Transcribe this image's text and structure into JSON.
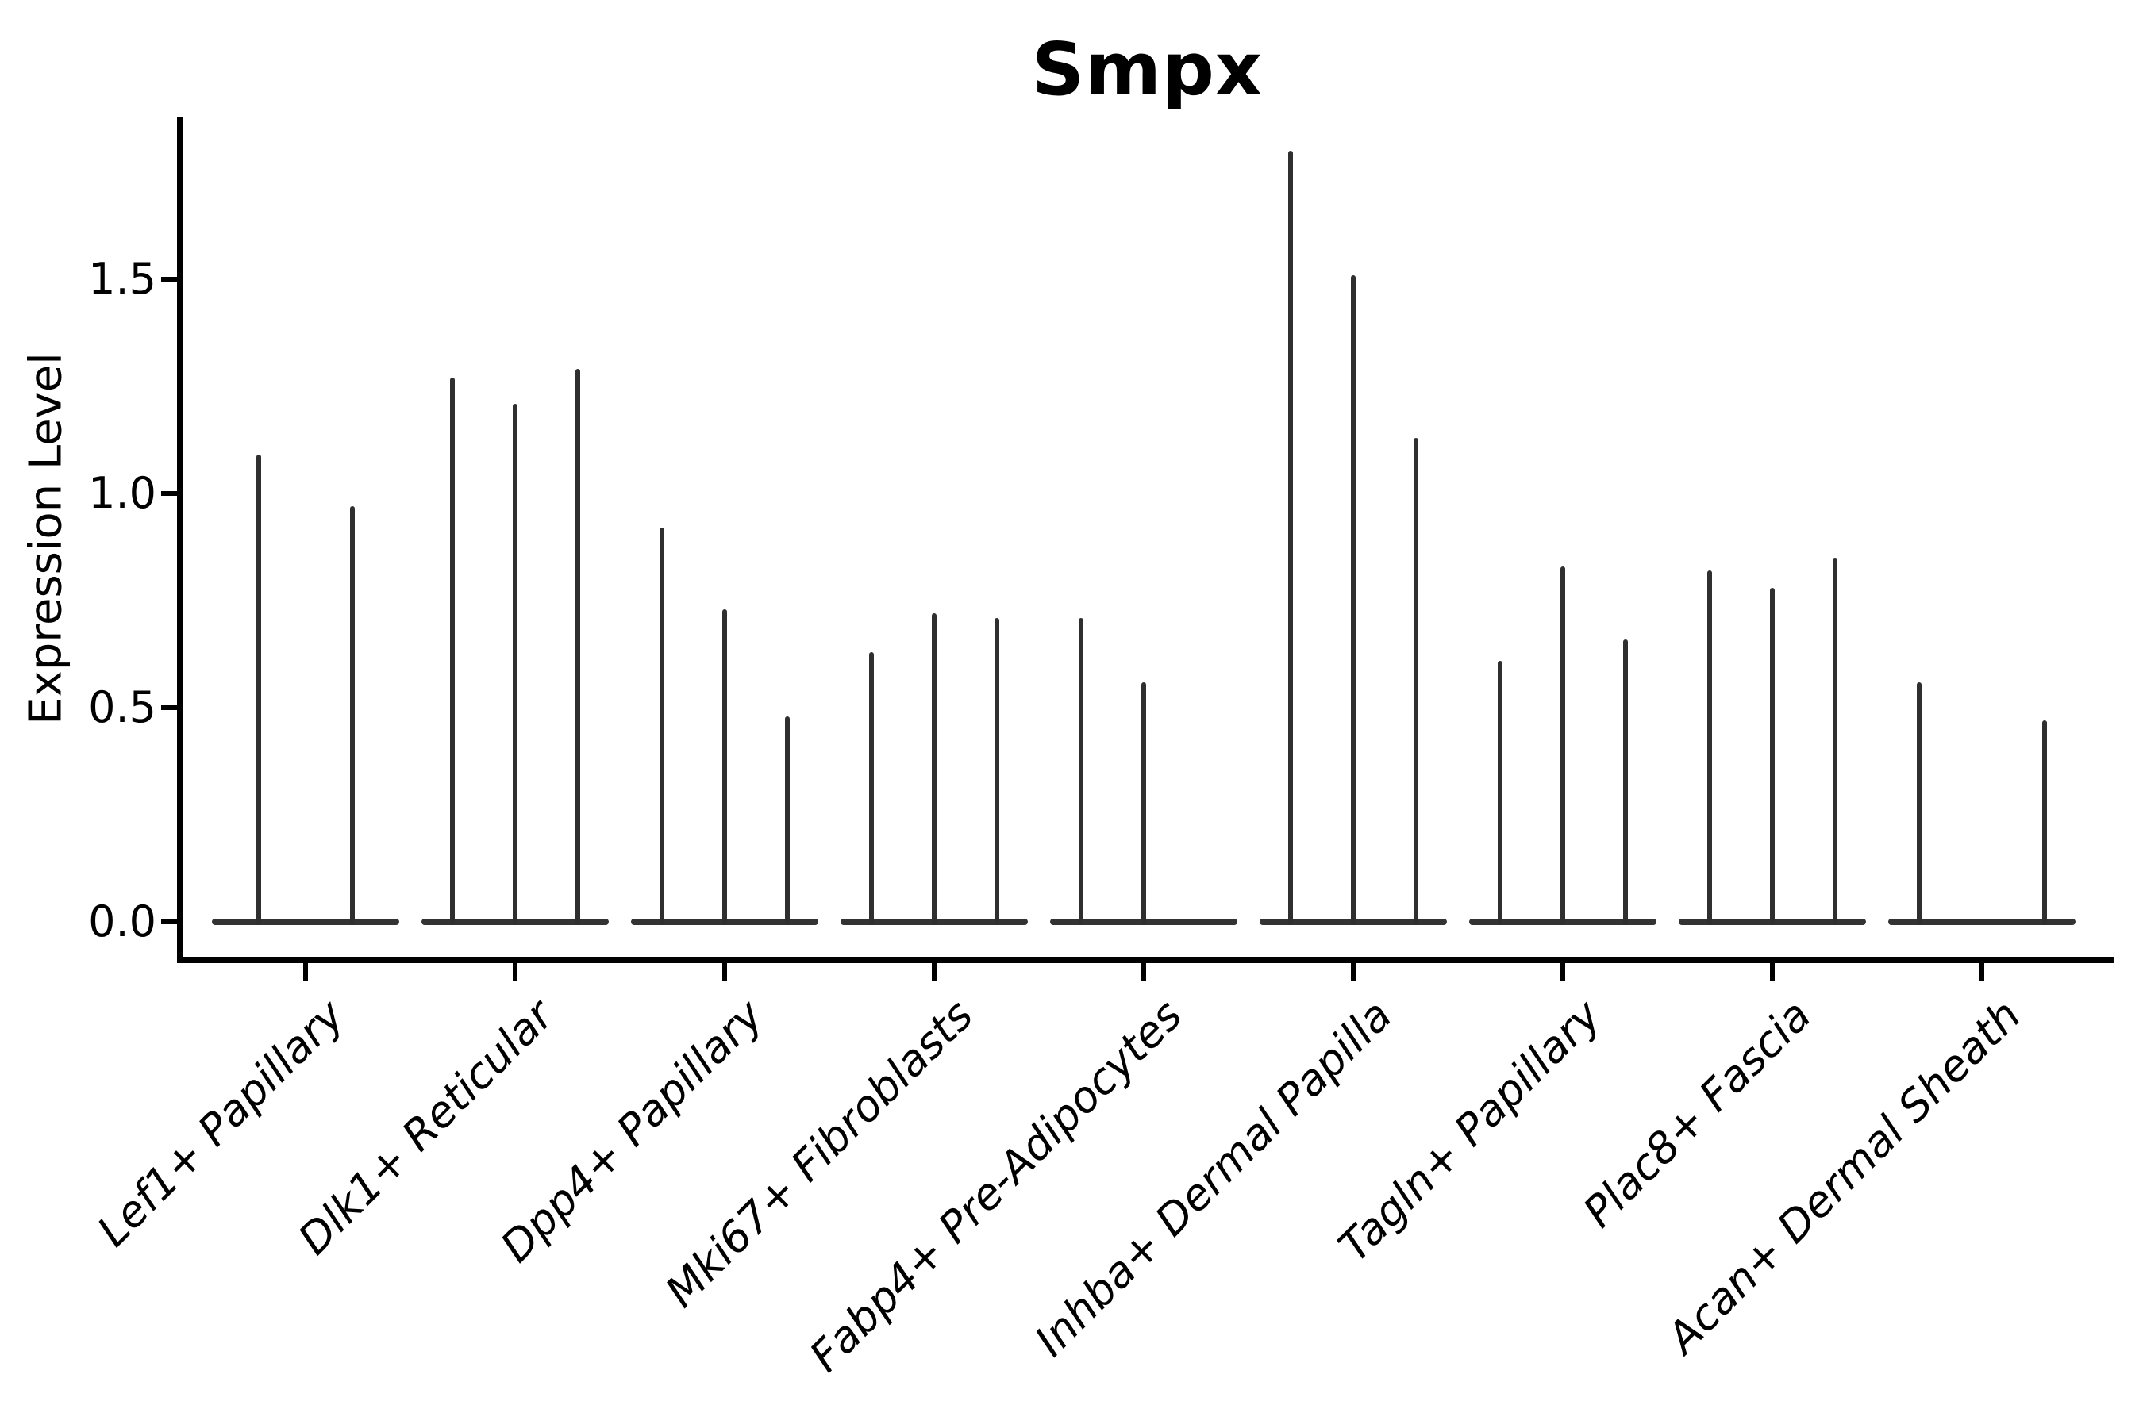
{
  "title": "Smpx",
  "ylabel": "Expression Level",
  "colors": {
    "background": "#ffffff",
    "axis": "#000000",
    "violin": "#2f2f2f",
    "text": "#000000"
  },
  "chart_data": {
    "type": "violin",
    "title": "Smpx",
    "xlabel": "",
    "ylabel": "Expression Level",
    "ylim": [
      -0.09,
      1.88
    ],
    "grid": false,
    "legend": "none",
    "x_label_rotation_deg": 45,
    "x_label_style": "italic",
    "yticks": [
      {
        "value": 0.0,
        "label": "0.0"
      },
      {
        "value": 0.5,
        "label": "0.5"
      },
      {
        "value": 1.0,
        "label": "1.0"
      },
      {
        "value": 1.5,
        "label": "1.5"
      }
    ],
    "categories": [
      "Lef1+ Papillary",
      "Dlk1+ Reticular",
      "Dpp4+ Papillary",
      "Mki67+ Fibroblasts",
      "Fabp4+ Pre-Adipocytes",
      "Inhba+ Dermal Papilla",
      "Tagln+ Papillary",
      "Plac8+ Fascia",
      "Acan+ Dermal Sheath"
    ],
    "groups": [
      {
        "label": "Lef1+ Papillary",
        "n_slots": 2,
        "violins": [
          {
            "slot": 0,
            "max": 1.09
          },
          {
            "slot": 1,
            "max": 0.97
          }
        ]
      },
      {
        "label": "Dlk1+ Reticular",
        "n_slots": 3,
        "violins": [
          {
            "slot": 0,
            "max": 1.27
          },
          {
            "slot": 1,
            "max": 1.21
          },
          {
            "slot": 2,
            "max": 1.29
          }
        ]
      },
      {
        "label": "Dpp4+ Papillary",
        "n_slots": 3,
        "violins": [
          {
            "slot": 0,
            "max": 0.92
          },
          {
            "slot": 1,
            "max": 0.73
          },
          {
            "slot": 2,
            "max": 0.48
          }
        ]
      },
      {
        "label": "Mki67+ Fibroblasts",
        "n_slots": 3,
        "violins": [
          {
            "slot": 0,
            "max": 0.63
          },
          {
            "slot": 1,
            "max": 0.72
          },
          {
            "slot": 2,
            "max": 0.71
          }
        ]
      },
      {
        "label": "Fabp4+ Pre-Adipocytes",
        "n_slots": 3,
        "violins": [
          {
            "slot": 0,
            "max": 0.71
          },
          {
            "slot": 1,
            "max": 0.56
          }
        ]
      },
      {
        "label": "Inhba+ Dermal Papilla",
        "n_slots": 3,
        "violins": [
          {
            "slot": 0,
            "max": 1.8
          },
          {
            "slot": 1,
            "max": 1.51
          },
          {
            "slot": 2,
            "max": 1.13
          }
        ]
      },
      {
        "label": "Tagln+ Papillary",
        "n_slots": 3,
        "violins": [
          {
            "slot": 0,
            "max": 0.61
          },
          {
            "slot": 1,
            "max": 0.83
          },
          {
            "slot": 2,
            "max": 0.66
          }
        ]
      },
      {
        "label": "Plac8+ Fascia",
        "n_slots": 3,
        "violins": [
          {
            "slot": 0,
            "max": 0.82
          },
          {
            "slot": 1,
            "max": 0.78
          },
          {
            "slot": 2,
            "max": 0.85
          }
        ]
      },
      {
        "label": "Acan+ Dermal Sheath",
        "n_slots": 3,
        "violins": [
          {
            "slot": 0,
            "max": 0.56
          },
          {
            "slot": 2,
            "max": 0.47
          }
        ]
      }
    ]
  }
}
